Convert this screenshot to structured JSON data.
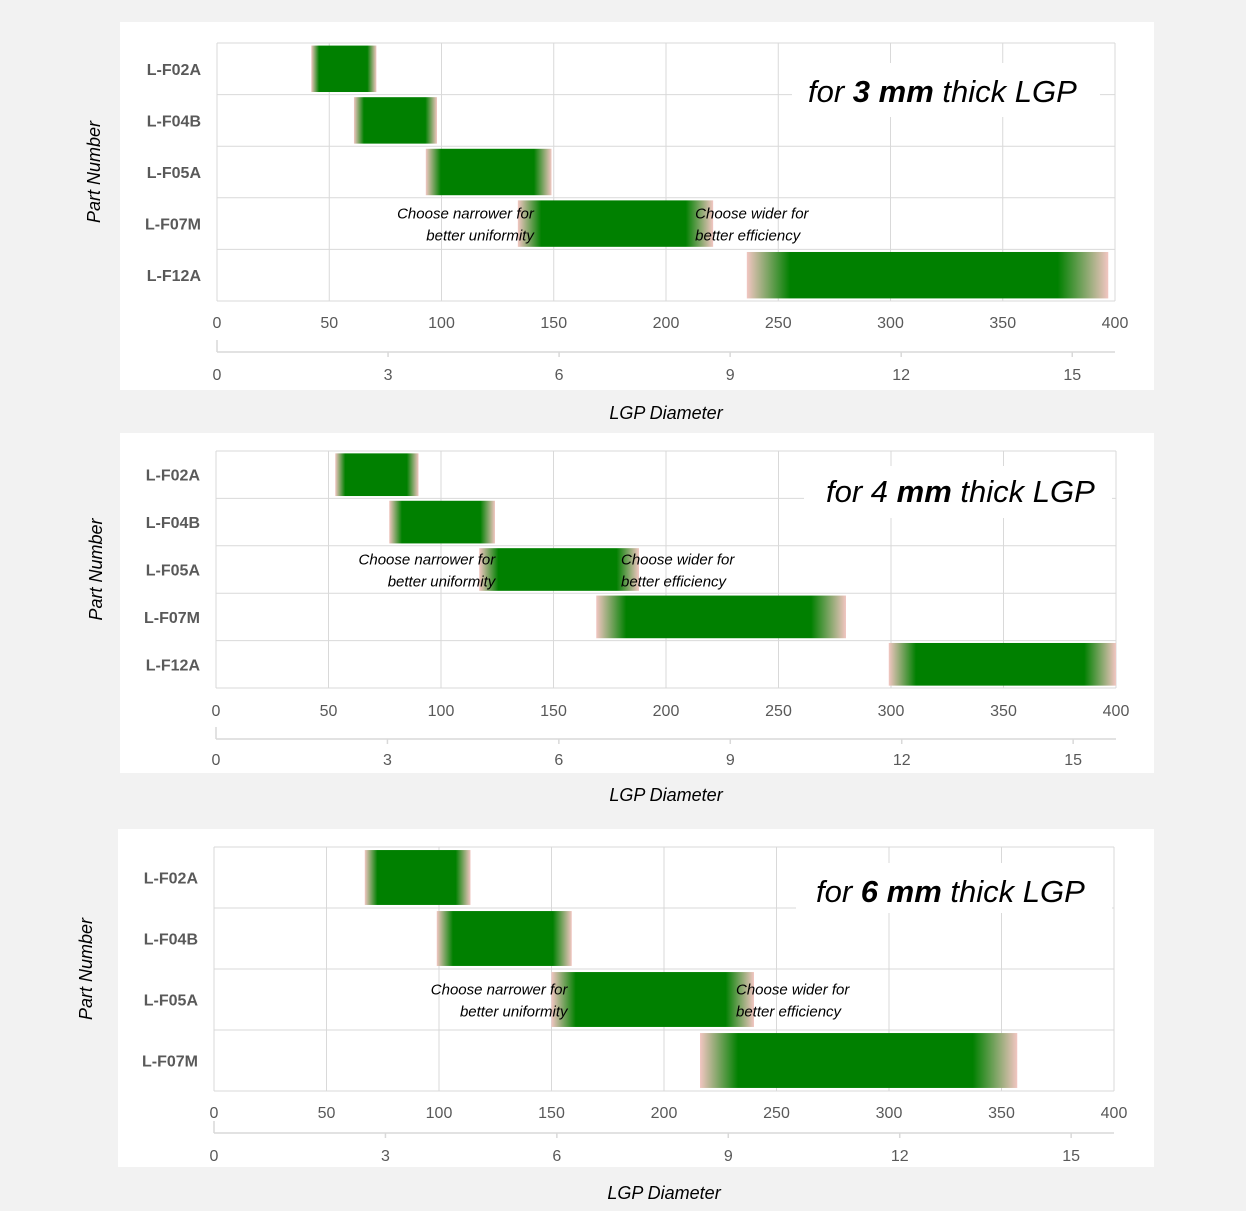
{
  "chart_data": [
    {
      "type": "bar",
      "subtype": "horizontal-range-gradient",
      "title_parts": [
        "for ",
        "3 mm",
        " thick LGP"
      ],
      "title_bold": [
        false,
        true,
        false
      ],
      "ylabel": "Part Number",
      "xlabel": "LGP Diameter",
      "x_primary": {
        "range": [
          0,
          400
        ],
        "ticks": [
          "0",
          "50",
          "100",
          "150",
          "200",
          "250",
          "300",
          "350",
          "400"
        ]
      },
      "x_secondary": {
        "range": [
          0,
          15.75
        ],
        "ticks": [
          "0",
          "3",
          "6",
          "9",
          "12",
          "15"
        ]
      },
      "grid": true,
      "categories": [
        "L-F02A",
        "L-F04B",
        "L-F05A",
        "L-F07M",
        "L-F12A"
      ],
      "ranges": [
        [
          42,
          71
        ],
        [
          61,
          98
        ],
        [
          93,
          149
        ],
        [
          134,
          221
        ],
        [
          236,
          397
        ]
      ],
      "annotations": {
        "row": "L-F07M",
        "narrower": [
          "Choose narrower for",
          "better uniformity"
        ],
        "wider": [
          "Choose wider for",
          "better efficiency"
        ]
      }
    },
    {
      "type": "bar",
      "subtype": "horizontal-range-gradient",
      "title_parts": [
        "for 4 ",
        "mm",
        " thick LGP"
      ],
      "title_bold": [
        false,
        true,
        false
      ],
      "ylabel": "Part Number",
      "xlabel": "LGP Diameter",
      "x_primary": {
        "range": [
          0,
          400
        ],
        "ticks": [
          "0",
          "50",
          "100",
          "150",
          "200",
          "250",
          "300",
          "350",
          "400"
        ]
      },
      "x_secondary": {
        "range": [
          0,
          15.75
        ],
        "ticks": [
          "0",
          "3",
          "6",
          "9",
          "12",
          "15"
        ]
      },
      "grid": true,
      "categories": [
        "L-F02A",
        "L-F04B",
        "L-F05A",
        "L-F07M",
        "L-F12A"
      ],
      "ranges": [
        [
          53,
          90
        ],
        [
          77,
          124
        ],
        [
          117,
          188
        ],
        [
          169,
          280
        ],
        [
          299,
          400
        ]
      ],
      "annotations": {
        "row": "L-F05A",
        "narrower": [
          "Choose narrower for",
          "better uniformity"
        ],
        "wider": [
          "Choose wider for",
          "better efficiency"
        ]
      }
    },
    {
      "type": "bar",
      "subtype": "horizontal-range-gradient",
      "title_parts": [
        "for ",
        "6 mm",
        " thick LGP"
      ],
      "title_bold": [
        false,
        true,
        false
      ],
      "ylabel": "Part Number",
      "xlabel": "LGP Diameter",
      "x_primary": {
        "range": [
          0,
          400
        ],
        "ticks": [
          "0",
          "50",
          "100",
          "150",
          "200",
          "250",
          "300",
          "350",
          "400"
        ]
      },
      "x_secondary": {
        "range": [
          0,
          15.75
        ],
        "ticks": [
          "0",
          "3",
          "6",
          "9",
          "12",
          "15"
        ]
      },
      "grid": true,
      "categories": [
        "L-F02A",
        "L-F04B",
        "L-F05A",
        "L-F07M"
      ],
      "ranges": [
        [
          67,
          114
        ],
        [
          99,
          159
        ],
        [
          150,
          240
        ],
        [
          216,
          357
        ]
      ],
      "annotations": {
        "row": "L-F05A",
        "narrower": [
          "Choose narrower for",
          "better uniformity"
        ],
        "wider": [
          "Choose wider for",
          "better efficiency"
        ]
      }
    }
  ],
  "colors": {
    "bar_core": "#008000",
    "bar_edge": "#f2c6c2",
    "grid": "#d9d9d9",
    "panel": "#ffffff",
    "page": "#f2f2f2",
    "text": "#595959",
    "axis_text": "#000000"
  }
}
